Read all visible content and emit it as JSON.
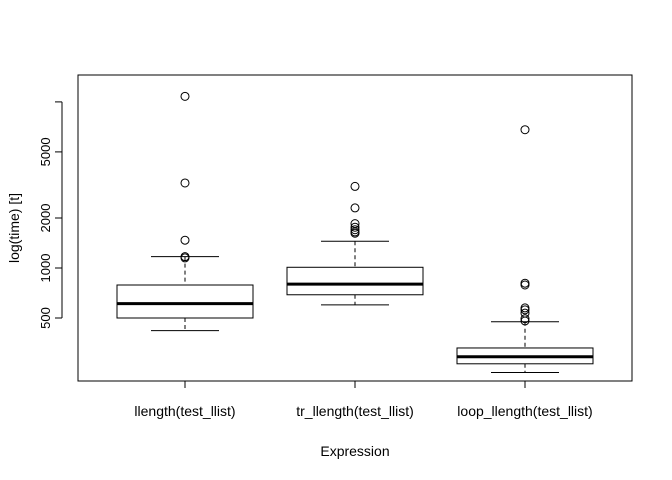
{
  "chart_data": {
    "type": "box",
    "xlabel": "Expression",
    "ylabel": "log(time) [t]",
    "y_scale": "log",
    "y_ticks": [
      500,
      1000,
      2000,
      5000
    ],
    "y_tick_labels": [
      "500",
      "1000",
      "2000",
      "5000"
    ],
    "grid": false,
    "legend": "none",
    "categories": [
      "llength(test_llist)",
      "tr_llength(test_llist)",
      "loop_llength(test_llist)"
    ],
    "boxes": [
      {
        "category": "llength(test_llist)",
        "whisker_low": 420,
        "q1": 500,
        "median": 610,
        "q3": 790,
        "whisker_high": 1170,
        "outliers": [
          1150,
          1170,
          1470,
          3250,
          10800
        ]
      },
      {
        "category": "tr_llength(test_llist)",
        "whisker_low": 600,
        "q1": 690,
        "median": 800,
        "q3": 1010,
        "whisker_high": 1450,
        "outliers": [
          1620,
          1650,
          1700,
          1760,
          1850,
          2300,
          3100
        ]
      },
      {
        "category": "loop_llength(test_llist)",
        "whisker_low": 235,
        "q1": 265,
        "median": 292,
        "q3": 330,
        "whisker_high": 475,
        "outliers": [
          480,
          495,
          535,
          560,
          575,
          790,
          810,
          6800
        ]
      }
    ]
  }
}
